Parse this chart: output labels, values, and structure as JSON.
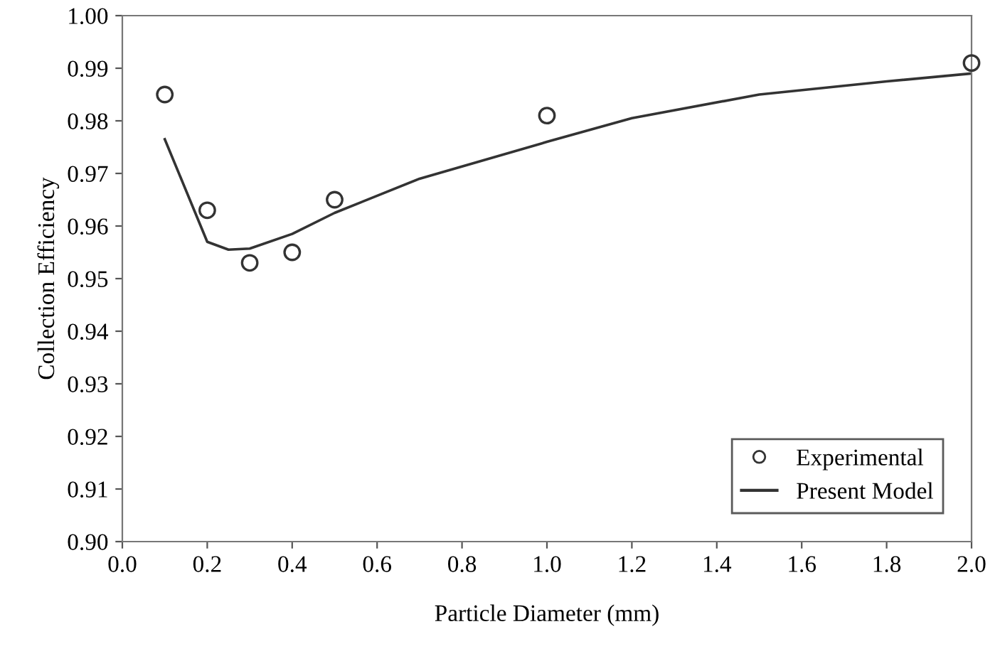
{
  "chart_data": {
    "type": "scatter",
    "xlabel": "Particle Diameter (mm)",
    "ylabel": "Collection Efficiency",
    "series": [
      {
        "name": "Experimental",
        "color": "#333333",
        "marker": "circle",
        "x": [
          0.1,
          0.2,
          0.3,
          0.4,
          0.5,
          1.0,
          2.0
        ],
        "values": [
          0.985,
          0.963,
          0.953,
          0.955,
          0.965,
          0.981,
          0.991
        ]
      },
      {
        "name": "Present Model",
        "type": "line",
        "color": "#333333",
        "marker": "none",
        "line_style": "solid",
        "x": [
          0.1,
          0.2,
          0.25,
          0.3,
          0.4,
          0.5,
          0.7,
          1.0,
          1.2,
          1.5,
          1.8,
          2.0
        ],
        "values": [
          0.9765,
          0.957,
          0.9555,
          0.9557,
          0.9585,
          0.9625,
          0.969,
          0.976,
          0.9805,
          0.985,
          0.9875,
          0.989
        ]
      }
    ],
    "xlim": [
      0.0,
      2.0
    ],
    "xticks": [
      {
        "value": 0.0,
        "label": "0.0"
      },
      0.2,
      0.4,
      0.6,
      0.8,
      {
        "value": 1.0,
        "label": "1.0"
      },
      1.2,
      1.4,
      1.6,
      1.8,
      {
        "value": 2.0,
        "label": "2.0"
      }
    ],
    "ylim": [
      0.9,
      1.0
    ],
    "yticks": [
      {
        "value": 0.9,
        "label": "0.90"
      },
      0.91,
      0.92,
      0.93,
      0.94,
      0.95,
      0.96,
      0.97,
      0.98,
      0.99,
      {
        "value": 1.0,
        "label": "1.00"
      }
    ],
    "grid": false,
    "legend": "bottom right"
  }
}
